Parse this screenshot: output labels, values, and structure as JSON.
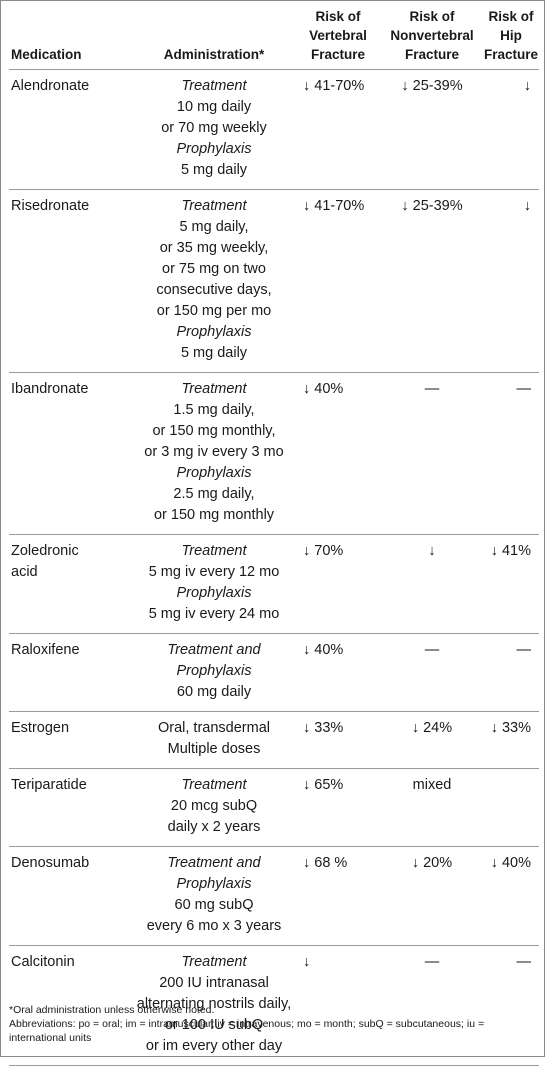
{
  "headers": {
    "medication": "Medication",
    "administration": "Administration*",
    "vertebral": [
      "Risk of",
      "Vertebral",
      "Fracture"
    ],
    "nonvertebral": [
      "Risk of",
      "Nonvertebral",
      "Fracture"
    ],
    "hip": [
      "Risk of",
      "Hip",
      "Fracture"
    ]
  },
  "rows": [
    {
      "medication": [
        "Alendronate"
      ],
      "administration": [
        {
          "text": "Treatment",
          "italic": true
        },
        {
          "text": "10 mg daily",
          "italic": false
        },
        {
          "text": "or 70 mg weekly",
          "italic": false
        },
        {
          "text": "Prophylaxis",
          "italic": true
        },
        {
          "text": "5 mg daily",
          "italic": false
        }
      ],
      "vertebral": "↓ 41-70%",
      "nonvertebral": "↓ 25-39%",
      "hip": "↓"
    },
    {
      "medication": [
        "Risedronate"
      ],
      "administration": [
        {
          "text": "Treatment",
          "italic": true
        },
        {
          "text": "5 mg daily,",
          "italic": false
        },
        {
          "text": "or 35 mg weekly,",
          "italic": false
        },
        {
          "text": "or 75 mg on two",
          "italic": false
        },
        {
          "text": "consecutive days,",
          "italic": false
        },
        {
          "text": "or 150 mg per mo",
          "italic": false
        },
        {
          "text": "Prophylaxis",
          "italic": true
        },
        {
          "text": "5 mg daily",
          "italic": false
        }
      ],
      "vertebral": "↓ 41-70%",
      "nonvertebral": "↓ 25-39%",
      "hip": "↓"
    },
    {
      "medication": [
        "Ibandronate"
      ],
      "administration": [
        {
          "text": "Treatment",
          "italic": true
        },
        {
          "text": "1.5 mg daily,",
          "italic": false
        },
        {
          "text": "or 150 mg monthly,",
          "italic": false
        },
        {
          "text": "or 3 mg iv every 3 mo",
          "italic": false
        },
        {
          "text": "Prophylaxis",
          "italic": true
        },
        {
          "text": "2.5 mg daily,",
          "italic": false
        },
        {
          "text": "or 150 mg monthly",
          "italic": false
        }
      ],
      "vertebral": "↓ 40%",
      "nonvertebral": "—",
      "hip": "—"
    },
    {
      "medication": [
        "Zoledronic",
        "acid"
      ],
      "administration": [
        {
          "text": "Treatment",
          "italic": true
        },
        {
          "text": "5 mg iv every 12 mo",
          "italic": false
        },
        {
          "text": "Prophylaxis",
          "italic": true
        },
        {
          "text": "5 mg iv every 24 mo",
          "italic": false
        }
      ],
      "vertebral": "↓ 70%",
      "nonvertebral": "↓",
      "hip": "↓ 41%"
    },
    {
      "medication": [
        "Raloxifene"
      ],
      "administration": [
        {
          "text": "Treatment and",
          "italic": true
        },
        {
          "text": "Prophylaxis",
          "italic": true
        },
        {
          "text": "60 mg daily",
          "italic": false
        }
      ],
      "vertebral": "↓ 40%",
      "nonvertebral": "—",
      "hip": "—"
    },
    {
      "medication": [
        "Estrogen"
      ],
      "administration": [
        {
          "text": "Oral, transdermal",
          "italic": false
        },
        {
          "text": "Multiple doses",
          "italic": false
        }
      ],
      "vertebral": "↓ 33%",
      "nonvertebral": "↓ 24%",
      "hip": "↓ 33%"
    },
    {
      "medication": [
        "Teriparatide"
      ],
      "administration": [
        {
          "text": "Treatment",
          "italic": true
        },
        {
          "text": "20 mcg subQ",
          "italic": false
        },
        {
          "text": "daily x 2 years",
          "italic": false
        }
      ],
      "vertebral": "↓ 65%",
      "nonvertebral": "mixed",
      "hip": ""
    },
    {
      "medication": [
        "Denosumab"
      ],
      "administration": [
        {
          "text": "Treatment and",
          "italic": true
        },
        {
          "text": "Prophylaxis",
          "italic": true
        },
        {
          "text": "60 mg subQ",
          "italic": false
        },
        {
          "text": "every 6 mo x 3 years",
          "italic": false
        }
      ],
      "vertebral": "↓ 68 %",
      "nonvertebral": "↓ 20%",
      "hip": "↓ 40%"
    },
    {
      "medication": [
        "Calcitonin"
      ],
      "administration": [
        {
          "text": "Treatment",
          "italic": true
        },
        {
          "text": "200 IU intranasal",
          "italic": false
        },
        {
          "text": "alternating nostrils daily,",
          "italic": false
        },
        {
          "text": "or 100 IU subQ",
          "italic": false
        },
        {
          "text": "or im every other day",
          "italic": false
        }
      ],
      "vertebral": "↓",
      "nonvertebral": "—",
      "hip": "—"
    }
  ],
  "footnotes": {
    "oral": "*Oral administration unless otherwise noted.",
    "abbreviations": "Abbreviations: po = oral; im = intramuscular; iv = intravenous; mo = month; subQ = subcutaneous; iu = international units"
  }
}
